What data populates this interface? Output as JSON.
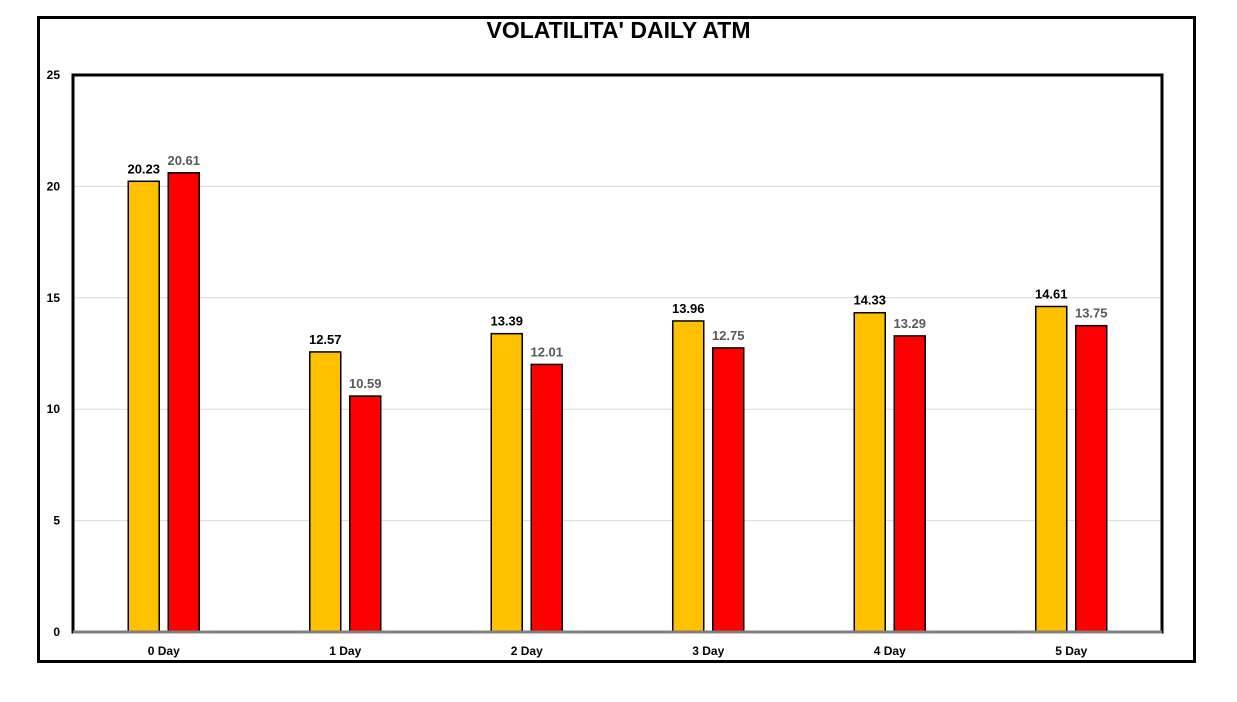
{
  "chart_data": {
    "type": "bar",
    "title": "VOLATILITA' DAILY ATM",
    "xlabel": "",
    "ylabel": "",
    "categories": [
      "0 Day",
      "1 Day",
      "2 Day",
      "3 Day",
      "4 Day",
      "5 Day"
    ],
    "series": [
      {
        "color": "#FFC000",
        "label_color": "#000000",
        "values": [
          20.23,
          12.57,
          13.39,
          13.96,
          14.33,
          14.61
        ]
      },
      {
        "color": "#FF0000",
        "label_color": "#595959",
        "values": [
          20.61,
          10.59,
          12.01,
          12.75,
          13.29,
          13.75
        ]
      }
    ],
    "ylim": [
      0,
      25
    ],
    "yticks": [
      0,
      5,
      10,
      15,
      20,
      25
    ],
    "grid": true,
    "legend": "none",
    "data_labels": true
  }
}
